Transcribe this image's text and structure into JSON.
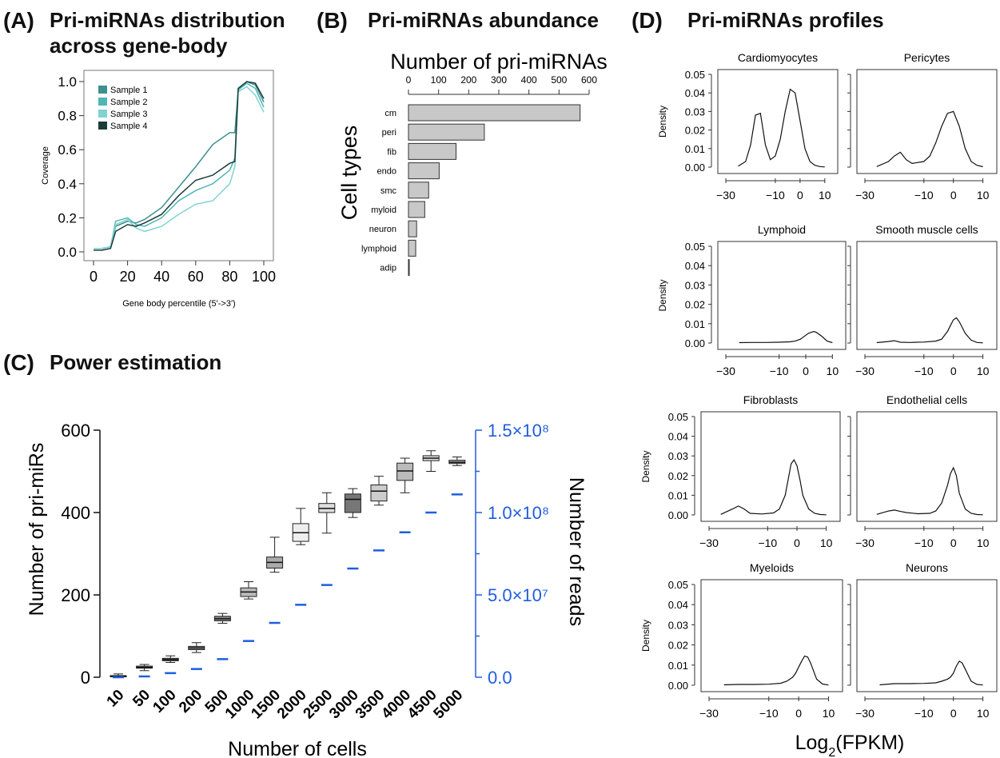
{
  "panels": {
    "A": {
      "label": "(A)",
      "title_line1": "Pri-miRNAs distribution",
      "title_line2": "across gene-body"
    },
    "B": {
      "label": "(B)",
      "title": "Pri-miRNAs abundance"
    },
    "C": {
      "label": "(C)",
      "title": "Power estimation"
    },
    "D": {
      "label": "(D)",
      "title": "Pri-miRNAs profiles"
    }
  },
  "chart_data": [
    {
      "panel": "A",
      "type": "line",
      "xlabel": "Gene body percentile (5'->3')",
      "ylabel": "Coverage",
      "xlim": [
        0,
        100
      ],
      "ylim": [
        0,
        1.0
      ],
      "xticks": [
        "0",
        "20",
        "40",
        "60",
        "80",
        "100"
      ],
      "yticks": [
        "0.0",
        "0.2",
        "0.4",
        "0.6",
        "0.8",
        "1.0"
      ],
      "legend_position": "top-left",
      "series": [
        {
          "name": "Sample 1",
          "color": "#3f8f8f",
          "x": [
            0,
            5,
            10,
            13,
            20,
            25,
            30,
            40,
            50,
            60,
            70,
            80,
            83,
            85,
            90,
            95,
            100
          ],
          "y": [
            0.02,
            0.02,
            0.03,
            0.15,
            0.18,
            0.17,
            0.19,
            0.26,
            0.38,
            0.5,
            0.63,
            0.7,
            0.7,
            0.95,
            1.0,
            0.98,
            0.88
          ]
        },
        {
          "name": "Sample 2",
          "color": "#4fb5b5",
          "x": [
            0,
            5,
            10,
            13,
            20,
            25,
            30,
            40,
            50,
            60,
            70,
            80,
            83,
            85,
            90,
            95,
            100
          ],
          "y": [
            0.02,
            0.02,
            0.03,
            0.18,
            0.2,
            0.16,
            0.15,
            0.2,
            0.3,
            0.36,
            0.4,
            0.48,
            0.55,
            0.95,
            0.99,
            0.96,
            0.85
          ]
        },
        {
          "name": "Sample 3",
          "color": "#7fd3d3",
          "x": [
            0,
            5,
            10,
            13,
            20,
            25,
            30,
            40,
            50,
            60,
            70,
            80,
            83,
            85,
            90,
            95,
            100
          ],
          "y": [
            0.02,
            0.02,
            0.03,
            0.16,
            0.19,
            0.14,
            0.12,
            0.15,
            0.22,
            0.28,
            0.3,
            0.4,
            0.5,
            0.94,
            0.97,
            0.92,
            0.82
          ]
        },
        {
          "name": "Sample 4",
          "color": "#1c3b3b",
          "x": [
            0,
            5,
            10,
            13,
            20,
            25,
            30,
            40,
            50,
            60,
            70,
            80,
            83,
            85,
            90,
            95,
            100
          ],
          "y": [
            0.01,
            0.01,
            0.02,
            0.12,
            0.16,
            0.15,
            0.17,
            0.22,
            0.33,
            0.42,
            0.45,
            0.52,
            0.53,
            0.96,
            1.0,
            0.99,
            0.9
          ]
        }
      ]
    },
    {
      "panel": "B",
      "type": "bar",
      "orientation": "horizontal",
      "title": "Number of pri-miRNAs",
      "ylabel": "Cell types",
      "xlim": [
        0,
        600
      ],
      "xticks": [
        "0",
        "100",
        "200",
        "300",
        "400",
        "500",
        "600"
      ],
      "categories": [
        "cm",
        "peri",
        "fib",
        "endo",
        "smc",
        "myloid",
        "neuron",
        "lymphoid",
        "adip"
      ],
      "values": [
        570,
        252,
        158,
        102,
        67,
        54,
        27,
        24,
        2
      ],
      "bar_color": "#c8c8c8"
    },
    {
      "panel": "C",
      "type": "box",
      "xlabel": "Number of cells",
      "ylabel": "Number of pri-miRs",
      "ylabel_right": "Number of reads",
      "ylim": [
        0,
        600
      ],
      "ylim_right": [
        0,
        150000000
      ],
      "yticks": [
        "0",
        "200",
        "400",
        "600"
      ],
      "yticks_right": [
        "0.0",
        "5.0×10⁷",
        "1.0×10⁸",
        "1.5×10⁸"
      ],
      "right_axis_color": "#1f5de0",
      "categories": [
        "10",
        "50",
        "100",
        "200",
        "500",
        "1000",
        "1500",
        "2000",
        "2500",
        "3000",
        "3500",
        "4000",
        "4500",
        "5000"
      ],
      "box_series": [
        {
          "min": 0,
          "q1": 1,
          "median": 2,
          "q3": 4,
          "max": 8
        },
        {
          "min": 16,
          "q1": 22,
          "median": 24,
          "q3": 27,
          "max": 31
        },
        {
          "min": 36,
          "q1": 40,
          "median": 43,
          "q3": 46,
          "max": 52
        },
        {
          "min": 60,
          "q1": 67,
          "median": 71,
          "q3": 75,
          "max": 84
        },
        {
          "min": 131,
          "q1": 137,
          "median": 142,
          "q3": 148,
          "max": 155
        },
        {
          "min": 190,
          "q1": 196,
          "median": 207,
          "q3": 217,
          "max": 232
        },
        {
          "min": 255,
          "q1": 265,
          "median": 279,
          "q3": 292,
          "max": 340
        },
        {
          "min": 322,
          "q1": 330,
          "median": 351,
          "q3": 373,
          "max": 410
        },
        {
          "min": 350,
          "q1": 400,
          "median": 410,
          "q3": 422,
          "max": 448
        },
        {
          "min": 388,
          "q1": 400,
          "median": 432,
          "q3": 445,
          "max": 458
        },
        {
          "min": 418,
          "q1": 428,
          "median": 452,
          "q3": 467,
          "max": 488
        },
        {
          "min": 448,
          "q1": 478,
          "median": 501,
          "q3": 520,
          "max": 532
        },
        {
          "min": 500,
          "q1": 526,
          "median": 532,
          "q3": 538,
          "max": 550
        },
        {
          "min": 514,
          "q1": 519,
          "median": 522,
          "q3": 527,
          "max": 535
        }
      ],
      "box_colors": [
        "#888888",
        "#888888",
        "#777777",
        "#999999",
        "#888888",
        "#bbbbbb",
        "#aaaaaa",
        "#eeeeee",
        "#dddddd",
        "#777777",
        "#cccccc",
        "#bbbbbb",
        "#dddddd",
        "#aaaaaa"
      ],
      "reads_series": {
        "name": "Number of reads",
        "color": "#1f5de0",
        "values": [
          0,
          500000,
          2500000,
          5000000,
          11000000,
          22000000,
          33000000,
          44000000,
          56000000,
          66000000,
          77000000,
          88000000,
          100000000,
          111000000
        ]
      }
    },
    {
      "panel": "D",
      "type": "line",
      "subtype": "density",
      "xlabel": "Log2(FPKM)",
      "ylabel": "Density",
      "xlim": [
        -30,
        12
      ],
      "ylim": [
        0,
        0.05
      ],
      "xticks": [
        "−30",
        "−10",
        "0",
        "10"
      ],
      "yticks": [
        "0.00",
        "0.01",
        "0.02",
        "0.03",
        "0.04",
        "0.05"
      ],
      "subplots": [
        {
          "title": "Cardiomyocytes",
          "x": [
            -25,
            -22,
            -20,
            -18,
            -16,
            -14,
            -12,
            -10,
            -8,
            -6,
            -4,
            -2,
            0,
            2,
            4,
            6,
            8,
            10
          ],
          "y": [
            0.0005,
            0.003,
            0.012,
            0.028,
            0.029,
            0.012,
            0.004,
            0.006,
            0.015,
            0.03,
            0.042,
            0.04,
            0.025,
            0.01,
            0.003,
            0.001,
            0.0003,
            0.0001
          ]
        },
        {
          "title": "Pericytes",
          "x": [
            -26,
            -22,
            -20,
            -18,
            -16,
            -14,
            -10,
            -8,
            -6,
            -4,
            -2,
            0,
            2,
            4,
            6,
            8,
            10
          ],
          "y": [
            0.0003,
            0.003,
            0.006,
            0.008,
            0.004,
            0.002,
            0.003,
            0.006,
            0.013,
            0.022,
            0.029,
            0.03,
            0.022,
            0.01,
            0.003,
            0.001,
            0.0002
          ]
        },
        {
          "title": "Lymphoid",
          "x": [
            -25,
            -20,
            -15,
            -10,
            -6,
            -4,
            -2,
            0,
            1,
            2,
            3,
            4,
            6,
            8,
            10
          ],
          "y": [
            0.0002,
            0.0003,
            0.0003,
            0.0004,
            0.0006,
            0.001,
            0.002,
            0.004,
            0.005,
            0.0055,
            0.006,
            0.0055,
            0.0035,
            0.001,
            0.0002
          ]
        },
        {
          "title": "Smooth muscle cells",
          "x": [
            -26,
            -22,
            -20,
            -18,
            -15,
            -10,
            -6,
            -4,
            -2,
            -1,
            0,
            1,
            2,
            4,
            6,
            8,
            10
          ],
          "y": [
            0.0002,
            0.0008,
            0.0012,
            0.0004,
            0.0003,
            0.0005,
            0.001,
            0.002,
            0.006,
            0.009,
            0.012,
            0.013,
            0.011,
            0.005,
            0.0015,
            0.0003,
            0.0001
          ]
        },
        {
          "title": "Fibroblasts",
          "x": [
            -26,
            -22,
            -20,
            -18,
            -16,
            -12,
            -8,
            -6,
            -4,
            -3,
            -2,
            -1,
            0,
            1,
            2,
            4,
            6,
            8,
            10
          ],
          "y": [
            0.0003,
            0.003,
            0.0045,
            0.003,
            0.0008,
            0.0005,
            0.001,
            0.003,
            0.01,
            0.018,
            0.026,
            0.028,
            0.025,
            0.018,
            0.01,
            0.003,
            0.0008,
            0.0002,
            0.0001
          ]
        },
        {
          "title": "Endothelial cells",
          "x": [
            -26,
            -22,
            -20,
            -18,
            -16,
            -12,
            -8,
            -6,
            -4,
            -2,
            -1,
            0,
            1,
            2,
            4,
            6,
            8,
            10
          ],
          "y": [
            0.0003,
            0.002,
            0.0025,
            0.0018,
            0.0012,
            0.0006,
            0.0008,
            0.002,
            0.006,
            0.015,
            0.021,
            0.024,
            0.02,
            0.011,
            0.003,
            0.0008,
            0.0002,
            0.0001
          ]
        },
        {
          "title": "Myeloids",
          "x": [
            -25,
            -20,
            -15,
            -10,
            -6,
            -4,
            -2,
            -1,
            0,
            1,
            2,
            3,
            4,
            6,
            8,
            10
          ],
          "y": [
            0.0002,
            0.0004,
            0.0004,
            0.0005,
            0.001,
            0.002,
            0.004,
            0.006,
            0.009,
            0.012,
            0.0145,
            0.014,
            0.011,
            0.003,
            0.0006,
            0.0001
          ]
        },
        {
          "title": "Neurons",
          "x": [
            -25,
            -20,
            -15,
            -10,
            -6,
            -4,
            -2,
            -1,
            0,
            1,
            2,
            3,
            4,
            6,
            8,
            10
          ],
          "y": [
            0.0002,
            0.0008,
            0.0008,
            0.0009,
            0.0012,
            0.002,
            0.003,
            0.004,
            0.006,
            0.0095,
            0.012,
            0.011,
            0.008,
            0.002,
            0.0004,
            0.0001
          ]
        }
      ]
    }
  ]
}
